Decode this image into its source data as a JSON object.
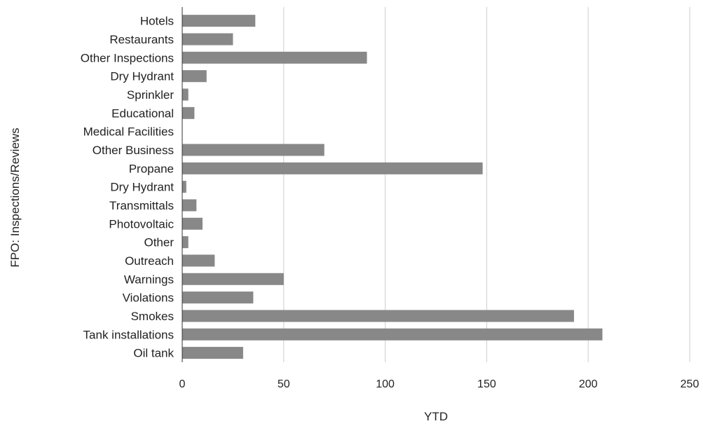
{
  "chart_data": {
    "type": "bar",
    "orientation": "horizontal",
    "title": "",
    "xlabel": "YTD",
    "ylabel": "FPO: Inspections/Reviews",
    "xlim": [
      0,
      250
    ],
    "xticks": [
      0,
      50,
      100,
      150,
      200,
      250
    ],
    "grid": true,
    "legend": "none",
    "bar_color": "#888888",
    "categories": [
      "Hotels",
      "Restaurants",
      "Other Inspections",
      "Dry Hydrant",
      "Sprinkler",
      "Educational",
      "Medical Facilities",
      "Other Business",
      "Propane",
      "Dry Hydrant",
      "Transmittals",
      "Photovoltaic",
      "Other",
      "Outreach",
      "Warnings",
      "Violations",
      "Smokes",
      "Tank installations",
      "Oil tank"
    ],
    "values": [
      36,
      25,
      91,
      12,
      3,
      6,
      0,
      70,
      148,
      2,
      7,
      10,
      3,
      16,
      50,
      35,
      193,
      207,
      30
    ]
  }
}
